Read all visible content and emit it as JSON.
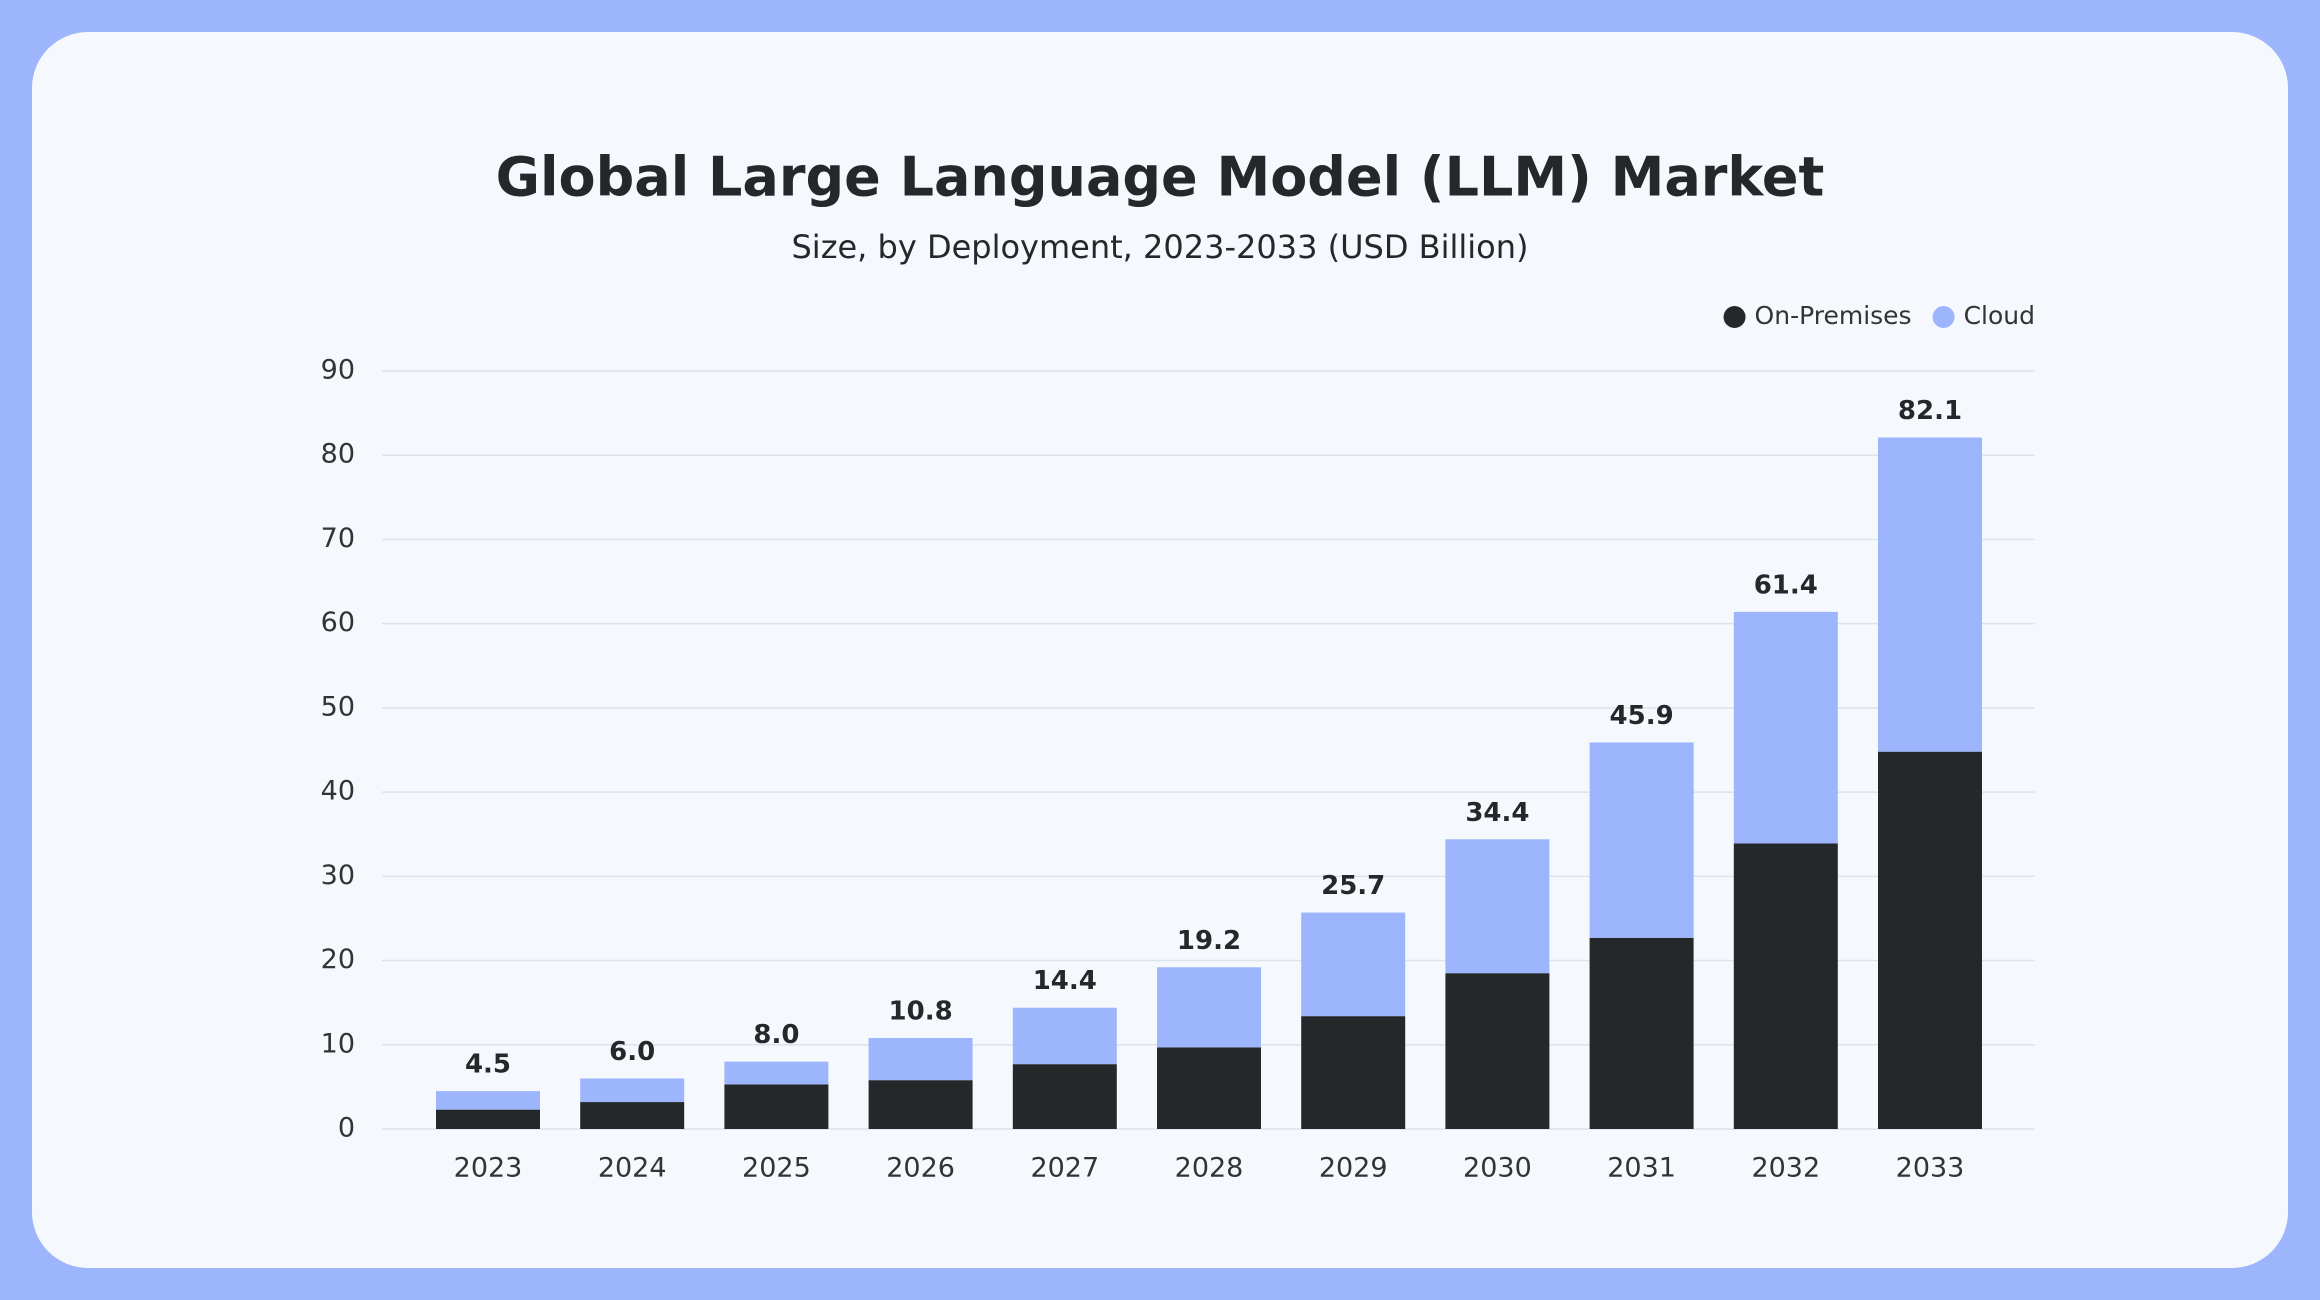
{
  "chart_data": {
    "type": "stacked_bar",
    "title": "Global Large Language Model (LLM) Market",
    "subtitle": "Size, by Deployment, 2023-2033 (USD Billion)",
    "categories": [
      "2023",
      "2024",
      "2025",
      "2026",
      "2027",
      "2028",
      "2029",
      "2030",
      "2031",
      "2032",
      "2033"
    ],
    "series": [
      {
        "name": "On-Premises",
        "color": "#24282b",
        "values": [
          2.3,
          3.2,
          5.3,
          5.8,
          7.7,
          9.7,
          13.4,
          18.5,
          22.7,
          33.9,
          44.8
        ]
      },
      {
        "name": "Cloud",
        "color": "#9db5fd",
        "values": [
          2.2,
          2.8,
          2.7,
          5.0,
          6.7,
          9.5,
          12.3,
          15.9,
          23.2,
          27.5,
          37.3
        ]
      }
    ],
    "totals": {
      "values": [
        4.5,
        6.0,
        8.0,
        10.8,
        14.4,
        19.2,
        25.7,
        34.4,
        45.9,
        61.4,
        82.1
      ],
      "value_labels": [
        "4.5",
        "6.0",
        "8.0",
        "10.8",
        "14.4",
        "19.2",
        "25.7",
        "34.4",
        "45.9",
        "61.4",
        "82.1"
      ]
    },
    "ylim": [
      0,
      90
    ],
    "yticks": [
      0,
      10,
      20,
      30,
      40,
      50,
      60,
      70,
      80,
      90
    ],
    "grid": true,
    "legend": "top-right"
  }
}
